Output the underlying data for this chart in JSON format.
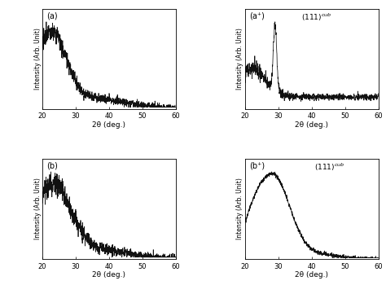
{
  "xlim": [
    20,
    60
  ],
  "xticks": [
    20,
    30,
    40,
    50,
    60
  ],
  "xlabel_a": "2θ (deg.)",
  "xlabel_b": "2θ (deg.)",
  "ylabel": "Intensity (Arb. Unit)",
  "panel_labels": [
    "(a)",
    "(a⁺)",
    "(b)",
    "(b⁺)"
  ],
  "background_color": "#ffffff",
  "line_color": "#111111",
  "figure_width": 4.74,
  "figure_height": 3.61,
  "dpi": 100
}
